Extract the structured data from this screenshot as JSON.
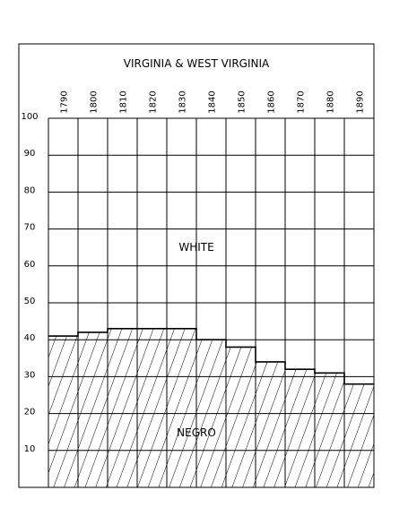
{
  "chart_data": {
    "type": "area",
    "title": "VIRGINIA & WEST VIRGINIA",
    "categories": [
      "1790",
      "1800",
      "1810",
      "1820",
      "1830",
      "1840",
      "1850",
      "1860",
      "1870",
      "1880",
      "1890"
    ],
    "series": [
      {
        "name": "NEGRO",
        "values": [
          41,
          42,
          43,
          43,
          43,
          40,
          38,
          34,
          32,
          31,
          28
        ]
      },
      {
        "name": "WHITE",
        "values": [
          59,
          58,
          57,
          57,
          57,
          60,
          62,
          66,
          68,
          69,
          72
        ]
      }
    ],
    "stacked_order": [
      "NEGRO",
      "WHITE"
    ],
    "y_ticks": [
      "10",
      "20",
      "30",
      "40",
      "50",
      "60",
      "70",
      "80",
      "90",
      "100"
    ],
    "ylim": [
      0,
      100
    ],
    "grid": true,
    "legend": "none",
    "colors": {
      "line": "#000000",
      "background": "#ffffff",
      "hatch": "#000000"
    }
  }
}
